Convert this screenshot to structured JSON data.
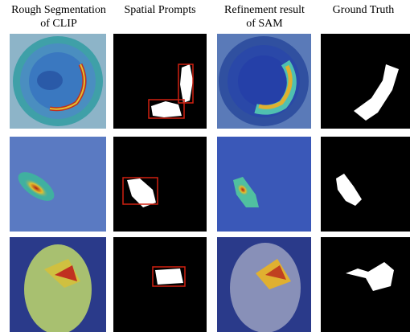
{
  "columns": [
    {
      "lines": [
        "Rough Segmentation",
        "of CLIP"
      ]
    },
    {
      "lines": [
        "Spatial Prompts"
      ]
    },
    {
      "lines": [
        "Refinement result",
        "of SAM"
      ]
    },
    {
      "lines": [
        "Ground Truth"
      ]
    }
  ]
}
